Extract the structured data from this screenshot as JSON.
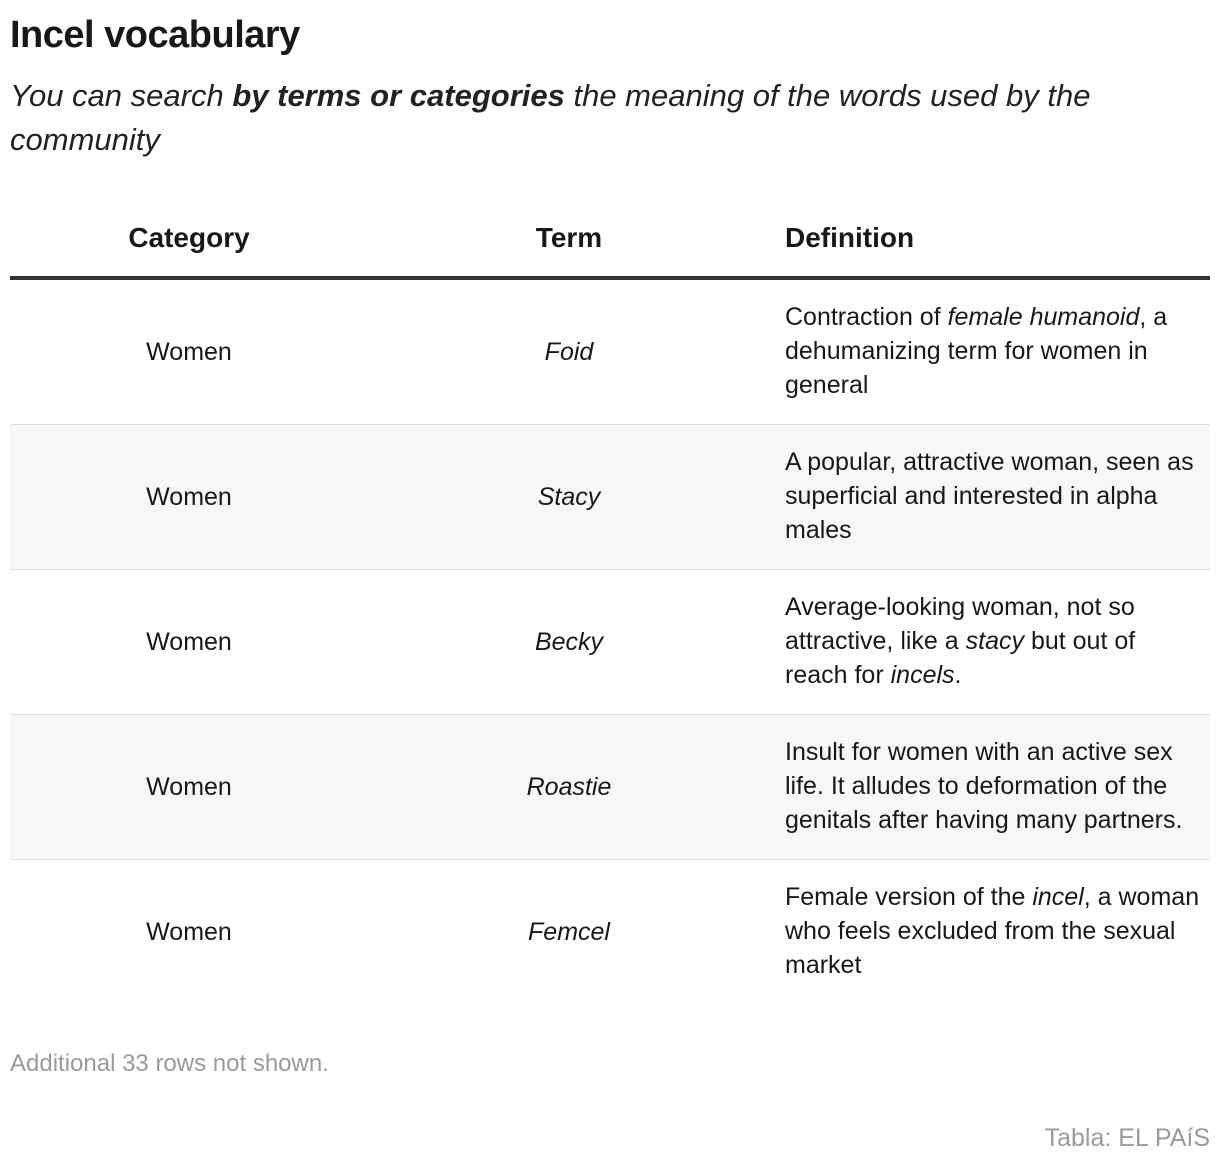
{
  "title": "Incel vocabulary",
  "subtitle": {
    "before": "You can search ",
    "bold": "by terms or categories",
    "after": " the meaning of the words used by the community"
  },
  "chart_data": {
    "type": "table",
    "columns": [
      "Category",
      "Term",
      "Definition"
    ],
    "rows": [
      {
        "category": "Women",
        "term": "Foid",
        "definition": [
          {
            "t": "Contraction of "
          },
          {
            "t": "female humanoid",
            "i": true
          },
          {
            "t": ", a dehumanizing term for women in general"
          }
        ]
      },
      {
        "category": "Women",
        "term": "Stacy",
        "definition": [
          {
            "t": "A popular, attractive woman, seen as superficial and interested in alpha males"
          }
        ]
      },
      {
        "category": "Women",
        "term": "Becky",
        "definition": [
          {
            "t": "Average-looking woman, not so attractive, like a "
          },
          {
            "t": "stacy",
            "i": true
          },
          {
            "t": " but out of reach for "
          },
          {
            "t": "incels",
            "i": true
          },
          {
            "t": "."
          }
        ]
      },
      {
        "category": "Women",
        "term": "Roastie",
        "definition": [
          {
            "t": "Insult for women with an active sex life. It alludes to deformation of the genitals after having many partners."
          }
        ]
      },
      {
        "category": "Women",
        "term": "Femcel",
        "definition": [
          {
            "t": "Female version of the "
          },
          {
            "t": "incel",
            "i": true
          },
          {
            "t": ", a woman who feels excluded from the sexual market"
          }
        ]
      }
    ]
  },
  "footnote": "Additional 33 rows not shown.",
  "source": "Tabla: EL PAíS",
  "colors": {
    "text": "#181818",
    "muted": "#9a9a9a",
    "header_rule": "#333333",
    "alt_row": "#f7f7f7",
    "row_divider": "#dedede"
  }
}
